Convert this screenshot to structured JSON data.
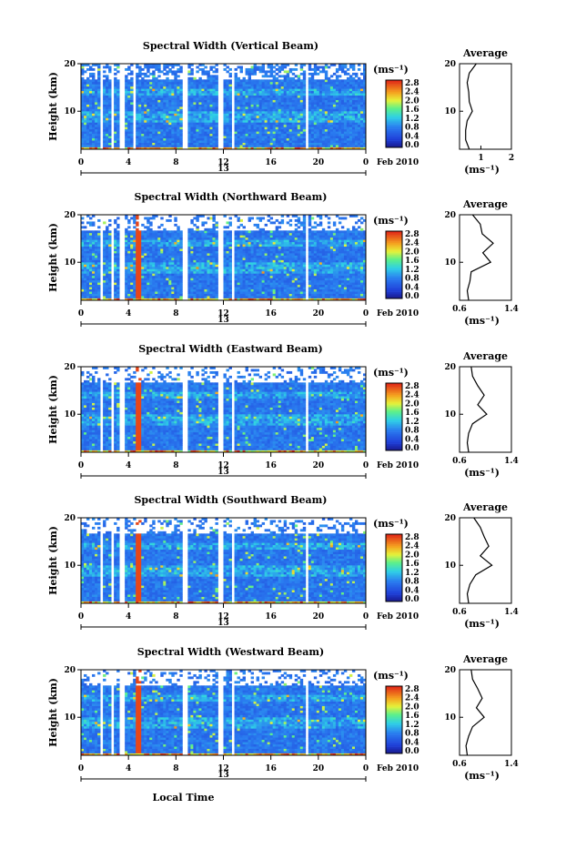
{
  "figure": {
    "xlabel": "Local Time",
    "date_label": "Feb 2010",
    "day_label": "13",
    "colorbar_unit": "(ms⁻¹)",
    "colorbar_ticks": [
      "0.0",
      "0.4",
      "0.8",
      "1.2",
      "1.6",
      "2.0",
      "2.4",
      "2.8"
    ]
  },
  "chart_data": [
    {
      "type": "heatmap",
      "title": "Spectral Width (Vertical Beam)",
      "xlabel": "Local Time",
      "ylabel": "Height (km)",
      "x_ticks": [
        "0",
        "4",
        "8",
        "12",
        "16",
        "20",
        "0"
      ],
      "y_ticks": [
        "10",
        "20"
      ],
      "xlim": [
        0,
        24
      ],
      "ylim": [
        2,
        20
      ],
      "value_range": [
        0.0,
        3.0
      ],
      "data_gaps_hours": [
        [
          1.6,
          1.9
        ],
        [
          2.5,
          2.8
        ],
        [
          3.3,
          3.6
        ],
        [
          4.3,
          4.5
        ],
        [
          8.6,
          8.9
        ],
        [
          11.6,
          11.9
        ],
        [
          12.6,
          12.9
        ],
        [
          18.9,
          19.2
        ]
      ],
      "profile": {
        "title": "Average",
        "xlabel": "(ms⁻¹)",
        "x_ticks": [
          "1",
          "2"
        ],
        "xlim": [
          0.3,
          2.0
        ],
        "y_ticks": [
          "10",
          "20"
        ],
        "heights": [
          2,
          4,
          6,
          8,
          10,
          12,
          14,
          16,
          18,
          20
        ],
        "values": [
          0.62,
          0.5,
          0.5,
          0.55,
          0.72,
          0.62,
          0.6,
          0.55,
          0.62,
          0.85
        ]
      }
    },
    {
      "type": "heatmap",
      "title": "Spectral Width (Northward Beam)",
      "xlabel": "Local Time",
      "ylabel": "Height (km)",
      "x_ticks": [
        "0",
        "4",
        "8",
        "12",
        "16",
        "20",
        "0"
      ],
      "y_ticks": [
        "10",
        "20"
      ],
      "xlim": [
        0,
        24
      ],
      "ylim": [
        2,
        20
      ],
      "value_range": [
        0.0,
        3.0
      ],
      "data_gaps_hours": [
        [
          1.6,
          1.9
        ],
        [
          2.5,
          2.8
        ],
        [
          3.3,
          3.6
        ],
        [
          8.6,
          8.9
        ],
        [
          11.6,
          11.9
        ],
        [
          12.6,
          12.9
        ],
        [
          18.9,
          19.2
        ]
      ],
      "profile": {
        "title": "Average",
        "xlabel": "(ms⁻¹)",
        "x_ticks": [
          "0.6",
          "1.4"
        ],
        "xlim": [
          0.6,
          1.4
        ],
        "y_ticks": [
          "10",
          "20"
        ],
        "heights": [
          2,
          4,
          6,
          8,
          10,
          12,
          14,
          16,
          18,
          20
        ],
        "values": [
          0.74,
          0.72,
          0.76,
          0.78,
          1.08,
          0.96,
          1.12,
          0.95,
          0.92,
          0.8
        ]
      }
    },
    {
      "type": "heatmap",
      "title": "Spectral Width (Eastward Beam)",
      "xlabel": "Local Time",
      "ylabel": "Height (km)",
      "x_ticks": [
        "0",
        "4",
        "8",
        "12",
        "16",
        "20",
        "0"
      ],
      "y_ticks": [
        "10",
        "20"
      ],
      "xlim": [
        0,
        24
      ],
      "ylim": [
        2,
        20
      ],
      "value_range": [
        0.0,
        3.0
      ],
      "data_gaps_hours": [
        [
          1.6,
          1.9
        ],
        [
          2.5,
          2.8
        ],
        [
          3.3,
          3.6
        ],
        [
          8.6,
          8.9
        ],
        [
          11.6,
          11.9
        ],
        [
          12.6,
          12.9
        ],
        [
          18.9,
          19.2
        ]
      ],
      "profile": {
        "title": "Average",
        "xlabel": "(ms⁻¹)",
        "x_ticks": [
          "0.6",
          "1.4"
        ],
        "xlim": [
          0.6,
          1.4
        ],
        "y_ticks": [
          "10",
          "20"
        ],
        "heights": [
          2,
          4,
          6,
          8,
          10,
          12,
          14,
          16,
          18,
          20
        ],
        "values": [
          0.74,
          0.72,
          0.74,
          0.8,
          1.02,
          0.88,
          0.98,
          0.88,
          0.8,
          0.78
        ]
      }
    },
    {
      "type": "heatmap",
      "title": "Spectral Width (Southward Beam)",
      "xlabel": "Local Time",
      "ylabel": "Height (km)",
      "x_ticks": [
        "0",
        "4",
        "8",
        "12",
        "16",
        "20",
        "0"
      ],
      "y_ticks": [
        "10",
        "20"
      ],
      "xlim": [
        0,
        24
      ],
      "ylim": [
        2,
        20
      ],
      "value_range": [
        0.0,
        3.0
      ],
      "data_gaps_hours": [
        [
          1.6,
          1.9
        ],
        [
          2.5,
          2.8
        ],
        [
          3.3,
          3.6
        ],
        [
          8.6,
          8.9
        ],
        [
          11.6,
          11.9
        ],
        [
          12.6,
          12.9
        ],
        [
          18.9,
          19.2
        ]
      ],
      "profile": {
        "title": "Average",
        "xlabel": "(ms⁻¹)",
        "x_ticks": [
          "0.6",
          "1.4"
        ],
        "xlim": [
          0.6,
          1.4
        ],
        "y_ticks": [
          "10",
          "20"
        ],
        "heights": [
          2,
          4,
          6,
          8,
          10,
          12,
          14,
          16,
          18,
          20
        ],
        "values": [
          0.74,
          0.72,
          0.76,
          0.85,
          1.1,
          0.92,
          1.05,
          0.98,
          0.92,
          0.82
        ]
      }
    },
    {
      "type": "heatmap",
      "title": "Spectral Width (Westward Beam)",
      "xlabel": "Local Time",
      "ylabel": "Height (km)",
      "x_ticks": [
        "0",
        "4",
        "8",
        "12",
        "16",
        "20",
        "0"
      ],
      "y_ticks": [
        "10",
        "20"
      ],
      "xlim": [
        0,
        24
      ],
      "ylim": [
        2,
        20
      ],
      "value_range": [
        0.0,
        3.0
      ],
      "data_gaps_hours": [
        [
          1.6,
          1.9
        ],
        [
          2.5,
          2.8
        ],
        [
          3.3,
          3.6
        ],
        [
          8.6,
          8.9
        ],
        [
          11.6,
          11.9
        ],
        [
          12.6,
          12.9
        ],
        [
          18.9,
          19.2
        ]
      ],
      "profile": {
        "title": "Average",
        "xlabel": "(ms⁻¹)",
        "x_ticks": [
          "0.6",
          "1.4"
        ],
        "xlim": [
          0.6,
          1.4
        ],
        "y_ticks": [
          "10",
          "20"
        ],
        "heights": [
          2,
          4,
          6,
          8,
          10,
          12,
          14,
          16,
          18,
          20
        ],
        "values": [
          0.72,
          0.7,
          0.74,
          0.8,
          0.98,
          0.86,
          0.95,
          0.88,
          0.8,
          0.78
        ]
      }
    }
  ]
}
